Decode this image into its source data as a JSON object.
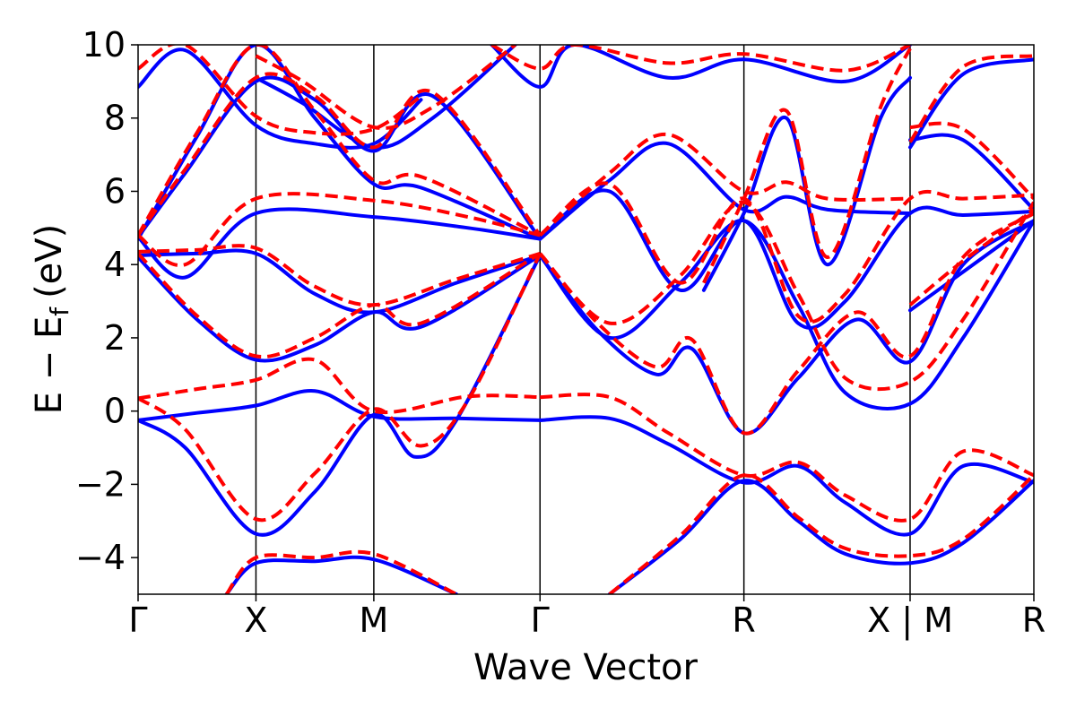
{
  "chart_data": {
    "type": "line",
    "title": "",
    "xlabel": "Wave Vector",
    "ylabel_main": "E − E",
    "ylabel_sub": "f",
    "ylabel_unit": "(eV)",
    "ylim": [
      -5,
      10
    ],
    "yticks": [
      -4,
      -2,
      0,
      2,
      4,
      6,
      8,
      10
    ],
    "ytick_labels": [
      "−4",
      "−2",
      "0",
      "2",
      "4",
      "6",
      "8",
      "10"
    ],
    "xlim": [
      0,
      7.6
    ],
    "path_points": [
      {
        "label": "Γ",
        "x": 0.0
      },
      {
        "label": "X",
        "x": 1.0
      },
      {
        "label": "M",
        "x": 2.0
      },
      {
        "label": "Γ",
        "x": 3.41
      },
      {
        "label": "R",
        "x": 5.14
      },
      {
        "label": "X | M",
        "x": 6.55
      },
      {
        "label": "R",
        "x": 7.6
      }
    ],
    "grid": false,
    "legend": "none",
    "colors": {
      "solid": "#0000ff",
      "dashed": "#ff0000"
    },
    "series": [
      {
        "style": "solid",
        "x": [
          0.0,
          0.5,
          1.0,
          1.5,
          2.0,
          2.7,
          3.41
        ],
        "y": [
          -0.25,
          -0.05,
          0.15,
          0.55,
          -0.15,
          -0.2,
          -0.25
        ]
      },
      {
        "style": "solid",
        "x": [
          0.0,
          0.4,
          1.0,
          1.5,
          2.0,
          2.35,
          2.7,
          3.41
        ],
        "y": [
          -0.25,
          -1.0,
          -3.35,
          -2.2,
          -0.1,
          -1.25,
          -0.25,
          4.25
        ]
      },
      {
        "style": "solid",
        "x": [
          3.41,
          4.0,
          4.5,
          5.14,
          5.6,
          6.0,
          6.55,
          7.0,
          7.6
        ],
        "y": [
          -0.25,
          -0.2,
          -0.9,
          -1.95,
          -1.5,
          -2.5,
          -3.35,
          -1.5,
          -1.95
        ]
      },
      {
        "style": "solid",
        "x": [
          0.75,
          1.0,
          1.5,
          2.0,
          2.7
        ],
        "y": [
          -5.0,
          -4.15,
          -4.1,
          -4.05,
          -5.0
        ]
      },
      {
        "style": "solid",
        "x": [
          4.0,
          4.6,
          5.14,
          5.6,
          6.0,
          6.55,
          7.0,
          7.6
        ],
        "y": [
          -5.0,
          -3.5,
          -1.9,
          -3.0,
          -3.9,
          -4.15,
          -3.6,
          -1.9
        ]
      },
      {
        "style": "solid",
        "x": [
          0.0,
          0.5,
          1.0,
          1.5,
          2.0,
          2.4,
          3.41
        ],
        "y": [
          4.2,
          2.5,
          1.4,
          1.8,
          2.7,
          2.3,
          4.25
        ]
      },
      {
        "style": "solid",
        "x": [
          0.0,
          0.5,
          1.0,
          1.5,
          2.0,
          2.7,
          3.41
        ],
        "y": [
          4.25,
          4.3,
          4.3,
          3.2,
          2.7,
          3.5,
          4.25
        ]
      },
      {
        "style": "solid",
        "x": [
          3.41,
          3.9,
          4.4,
          4.7,
          5.14,
          5.6,
          6.1,
          6.55,
          7.0,
          7.6
        ],
        "y": [
          4.25,
          2.2,
          1.0,
          1.7,
          -0.6,
          0.9,
          2.5,
          1.35,
          4.0,
          5.2
        ]
      },
      {
        "style": "solid",
        "x": [
          3.41,
          4.0,
          4.6,
          5.14,
          5.6,
          6.0,
          6.55,
          7.0,
          7.6
        ],
        "y": [
          4.25,
          2.0,
          3.5,
          5.2,
          2.9,
          0.5,
          0.2,
          2.0,
          5.2
        ]
      },
      {
        "style": "solid",
        "x": [
          0.0,
          0.4,
          1.0,
          2.0,
          2.8,
          3.41
        ],
        "y": [
          4.75,
          3.65,
          5.4,
          5.3,
          5.0,
          4.7
        ]
      },
      {
        "style": "solid",
        "x": [
          0.0,
          0.5,
          1.0,
          1.5,
          2.0,
          2.4,
          3.41
        ],
        "y": [
          4.7,
          7.5,
          10.0,
          8.0,
          6.2,
          6.1,
          4.7
        ]
      },
      {
        "style": "solid",
        "x": [
          3.41,
          4.0,
          4.6,
          5.14,
          5.6,
          6.0,
          6.55,
          7.0,
          7.6
        ],
        "y": [
          4.7,
          6.0,
          3.3,
          5.2,
          2.4,
          3.0,
          5.4,
          5.35,
          5.45
        ]
      },
      {
        "style": "solid",
        "x": [
          3.41,
          4.0,
          4.5,
          5.14,
          5.5,
          5.85,
          6.55
        ],
        "y": [
          4.7,
          6.3,
          7.3,
          5.5,
          5.85,
          5.5,
          5.4
        ]
      },
      {
        "style": "solid",
        "x": [
          4.8,
          5.14,
          5.5,
          5.85,
          6.3,
          6.55
        ],
        "y": [
          3.3,
          5.4,
          8.0,
          4.0,
          8.0,
          9.1
        ]
      },
      {
        "style": "solid",
        "x": [
          0.0,
          0.4,
          1.0,
          1.5,
          2.0,
          2.5,
          3.41
        ],
        "y": [
          4.75,
          6.5,
          9.0,
          8.5,
          7.1,
          8.6,
          4.7
        ]
      },
      {
        "style": "solid",
        "x": [
          0.0,
          0.4,
          1.0,
          1.5,
          2.0,
          2.4
        ],
        "y": [
          8.85,
          9.85,
          7.8,
          7.3,
          7.3,
          8.5
        ]
      },
      {
        "style": "solid",
        "x": [
          1.0,
          1.4,
          2.0,
          2.5,
          3.2
        ],
        "y": [
          9.1,
          8.4,
          7.2,
          8.0,
          10.0
        ]
      },
      {
        "style": "solid",
        "x": [
          3.0,
          3.41,
          3.7,
          4.5,
          5.14,
          6.0,
          6.55
        ],
        "y": [
          10.0,
          8.85,
          10.0,
          9.1,
          9.6,
          9.0,
          10.0
        ]
      },
      {
        "style": "solid",
        "x": [
          6.55,
          7.0,
          7.6
        ],
        "y": [
          7.2,
          9.2,
          9.6
        ]
      },
      {
        "style": "solid",
        "x": [
          6.55,
          7.0,
          7.6
        ],
        "y": [
          7.4,
          7.4,
          5.5
        ]
      },
      {
        "style": "solid",
        "x": [
          6.55,
          7.0,
          7.6
        ],
        "y": [
          2.75,
          3.8,
          5.2
        ]
      },
      {
        "style": "dashed",
        "x": [
          0.0,
          0.5,
          1.0,
          1.5,
          2.0,
          2.8,
          3.41
        ],
        "y": [
          0.35,
          0.6,
          0.85,
          1.4,
          0.0,
          0.4,
          0.38
        ]
      },
      {
        "style": "dashed",
        "x": [
          0.0,
          0.4,
          1.0,
          1.5,
          2.0,
          2.4,
          2.8,
          3.41
        ],
        "y": [
          0.35,
          -0.5,
          -2.95,
          -1.7,
          0.05,
          -0.95,
          0.3,
          4.3
        ]
      },
      {
        "style": "dashed",
        "x": [
          3.41,
          4.0,
          4.5,
          5.14,
          5.6,
          6.0,
          6.55,
          7.0,
          7.6
        ],
        "y": [
          0.38,
          0.38,
          -0.6,
          -1.75,
          -1.4,
          -2.3,
          -2.95,
          -1.1,
          -1.75
        ]
      },
      {
        "style": "dashed",
        "x": [
          0.75,
          1.0,
          1.5,
          2.0,
          2.7
        ],
        "y": [
          -5.0,
          -4.0,
          -4.0,
          -3.9,
          -5.0
        ]
      },
      {
        "style": "dashed",
        "x": [
          4.0,
          4.6,
          5.14,
          5.6,
          6.0,
          6.55,
          7.0,
          7.6
        ],
        "y": [
          -5.0,
          -3.4,
          -1.75,
          -2.9,
          -3.75,
          -3.95,
          -3.5,
          -1.75
        ]
      },
      {
        "style": "dashed",
        "x": [
          0.0,
          0.5,
          1.0,
          1.5,
          2.0,
          2.4,
          3.41
        ],
        "y": [
          4.3,
          2.6,
          1.5,
          2.0,
          2.9,
          2.4,
          4.3
        ]
      },
      {
        "style": "dashed",
        "x": [
          0.0,
          0.5,
          1.0,
          1.5,
          2.0,
          2.7,
          3.41
        ],
        "y": [
          4.35,
          4.4,
          4.45,
          3.4,
          2.9,
          3.6,
          4.3
        ]
      },
      {
        "style": "dashed",
        "x": [
          3.41,
          3.9,
          4.4,
          4.7,
          5.14,
          5.6,
          6.1,
          6.55,
          7.0,
          7.6
        ],
        "y": [
          4.3,
          2.4,
          1.2,
          1.95,
          -0.6,
          1.1,
          2.7,
          1.5,
          4.2,
          5.4
        ]
      },
      {
        "style": "dashed",
        "x": [
          3.41,
          4.0,
          4.6,
          5.14,
          5.6,
          6.0,
          6.55,
          7.0,
          7.6
        ],
        "y": [
          4.3,
          2.4,
          3.7,
          5.7,
          3.2,
          0.9,
          0.8,
          2.5,
          5.7
        ]
      },
      {
        "style": "dashed",
        "x": [
          0.0,
          0.4,
          1.0,
          2.0,
          2.8,
          3.41
        ],
        "y": [
          4.8,
          4.0,
          5.8,
          5.75,
          5.3,
          4.8
        ]
      },
      {
        "style": "dashed",
        "x": [
          0.0,
          0.5,
          1.0,
          1.5,
          2.0,
          2.4,
          3.41
        ],
        "y": [
          4.8,
          7.6,
          10.0,
          8.2,
          6.3,
          6.4,
          4.8
        ]
      },
      {
        "style": "dashed",
        "x": [
          3.41,
          4.0,
          4.6,
          5.14,
          5.6,
          6.0,
          6.55,
          7.0,
          7.6
        ],
        "y": [
          4.8,
          6.2,
          3.5,
          5.8,
          2.6,
          3.2,
          5.8,
          5.8,
          5.9
        ]
      },
      {
        "style": "dashed",
        "x": [
          3.41,
          4.0,
          4.5,
          5.14,
          5.5,
          5.85,
          6.55
        ],
        "y": [
          4.8,
          6.5,
          7.55,
          6.0,
          6.25,
          5.8,
          5.8
        ]
      },
      {
        "style": "dashed",
        "x": [
          4.8,
          5.14,
          5.5,
          5.85,
          6.3,
          6.55
        ],
        "y": [
          3.5,
          5.8,
          8.2,
          4.2,
          8.3,
          9.9
        ]
      },
      {
        "style": "dashed",
        "x": [
          0.0,
          0.4,
          1.0,
          1.5,
          2.0,
          2.5,
          3.41
        ],
        "y": [
          4.8,
          6.6,
          9.1,
          8.6,
          7.2,
          8.7,
          4.8
        ]
      },
      {
        "style": "dashed",
        "x": [
          0.0,
          0.4,
          1.0,
          1.5,
          2.0,
          2.4
        ],
        "y": [
          9.35,
          10.0,
          8.05,
          7.6,
          7.7,
          8.6
        ]
      },
      {
        "style": "dashed",
        "x": [
          1.0,
          1.4,
          2.0,
          2.5,
          3.2
        ],
        "y": [
          9.7,
          9.0,
          7.75,
          8.3,
          10.0
        ]
      },
      {
        "style": "dashed",
        "x": [
          3.0,
          3.41,
          3.7,
          4.5,
          5.14,
          6.0,
          6.55
        ],
        "y": [
          10.0,
          9.35,
          10.0,
          9.5,
          9.75,
          9.3,
          10.0
        ]
      },
      {
        "style": "dashed",
        "x": [
          6.55,
          7.0,
          7.6
        ],
        "y": [
          7.35,
          9.4,
          9.7
        ]
      },
      {
        "style": "dashed",
        "x": [
          6.55,
          7.0,
          7.6
        ],
        "y": [
          7.75,
          7.7,
          5.8
        ]
      },
      {
        "style": "dashed",
        "x": [
          6.55,
          7.0,
          7.6
        ],
        "y": [
          2.9,
          4.1,
          5.5
        ]
      }
    ]
  }
}
